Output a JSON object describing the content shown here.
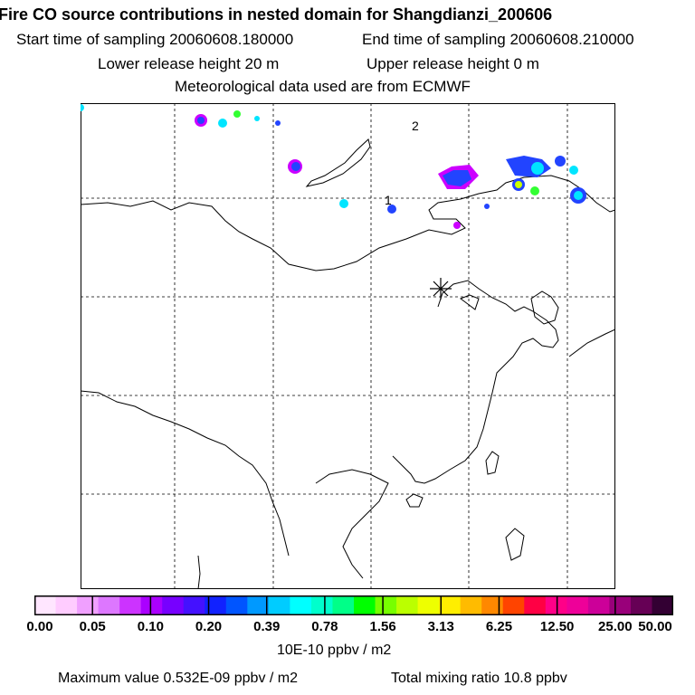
{
  "header": {
    "title": "Fire CO source contributions in nested domain for Shangdianzi_200606",
    "start": "Start time of sampling 20060608.180000",
    "end": "End time of sampling 20060608.210000",
    "lower": "Lower release height   20 m",
    "upper": "Upper release height    0 m",
    "met": "Meteorological data used are from ECMWF"
  },
  "map": {
    "labels": [
      "2",
      "1"
    ],
    "colors": {
      "coast": "#000000",
      "grid": "#000000",
      "plume_magenta": "#cc00ff",
      "plume_blue": "#2244ff",
      "plume_cyan": "#00e5ff",
      "plume_green": "#33ff33",
      "plume_yellow": "#ccff00"
    },
    "receptor": "asterisk-marker"
  },
  "colorbar": {
    "ticks": [
      "0.00",
      "0.05",
      "0.10",
      "0.20",
      "0.39",
      "0.78",
      "1.56",
      "3.13",
      "6.25",
      "12.50",
      "25.00",
      "50.00"
    ],
    "colors": [
      "#ffe6ff",
      "#ffccff",
      "#f0a0ff",
      "#dd77ff",
      "#cc33ff",
      "#aa00ff",
      "#7700ff",
      "#4411ff",
      "#1122ff",
      "#0055ff",
      "#0099ff",
      "#00ccff",
      "#00ffff",
      "#00ffcc",
      "#00ff88",
      "#00ff00",
      "#77ff00",
      "#bbff00",
      "#eeff00",
      "#ffee00",
      "#ffbb00",
      "#ff8800",
      "#ff4400",
      "#ff0044",
      "#ff0088",
      "#ee0099",
      "#cc0099",
      "#99007a",
      "#660055",
      "#330033"
    ],
    "unit": "10E-10 ppbv / m2"
  },
  "footer": {
    "max": "Maximum value  0.532E-09 ppbv / m2",
    "total": "Total mixing ratio       10.8 ppbv"
  }
}
